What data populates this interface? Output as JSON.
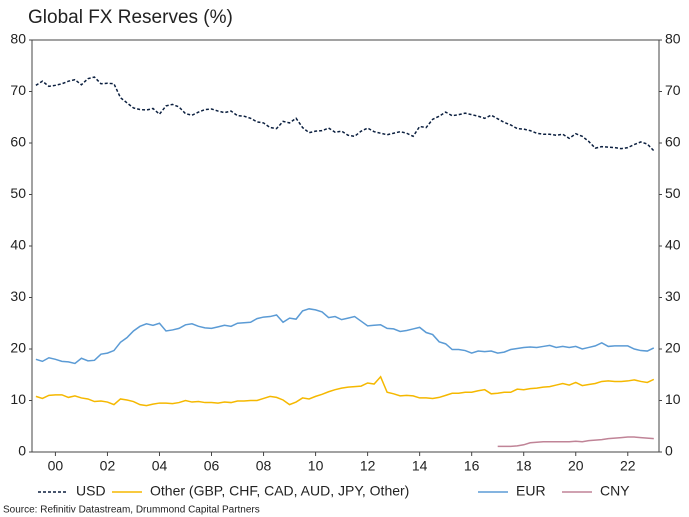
{
  "chart_data": {
    "type": "line",
    "title": "Global FX Reserves (%)",
    "source": "Source: Refinitiv Datastream, Drummond Capital Partners",
    "x": [
      1999.25,
      1999.5,
      1999.75,
      2000,
      2000.25,
      2000.5,
      2000.75,
      2001,
      2001.25,
      2001.5,
      2001.75,
      2002,
      2002.25,
      2002.5,
      2002.75,
      2003,
      2003.25,
      2003.5,
      2003.75,
      2004,
      2004.25,
      2004.5,
      2004.75,
      2005,
      2005.25,
      2005.5,
      2005.75,
      2006,
      2006.25,
      2006.5,
      2006.75,
      2007,
      2007.25,
      2007.5,
      2007.75,
      2008,
      2008.25,
      2008.5,
      2008.75,
      2009,
      2009.25,
      2009.5,
      2009.75,
      2010,
      2010.25,
      2010.5,
      2010.75,
      2011,
      2011.25,
      2011.5,
      2011.75,
      2012,
      2012.25,
      2012.5,
      2012.75,
      2013,
      2013.25,
      2013.5,
      2013.75,
      2014,
      2014.25,
      2014.5,
      2014.75,
      2015,
      2015.25,
      2015.5,
      2015.75,
      2016,
      2016.25,
      2016.5,
      2016.75,
      2017,
      2017.25,
      2017.5,
      2017.75,
      2018,
      2018.25,
      2018.5,
      2018.75,
      2019,
      2019.25,
      2019.5,
      2019.75,
      2020,
      2020.25,
      2020.5,
      2020.75,
      2021,
      2021.25,
      2021.5,
      2021.75,
      2022,
      2022.25,
      2022.5,
      2022.75,
      2023
    ],
    "series": [
      {
        "name": "USD",
        "color": "#0b1f3f",
        "dashed": true,
        "values": [
          71.2,
          72,
          71,
          71.2,
          71.5,
          72,
          72.3,
          71.3,
          72.5,
          72.8,
          71.5,
          71.6,
          71.5,
          68.8,
          67.8,
          66.8,
          66.5,
          66.4,
          66.7,
          65.6,
          67.2,
          67.5,
          67,
          65.7,
          65.4,
          66,
          66.5,
          66.6,
          66.2,
          65.9,
          66.2,
          65.3,
          65.2,
          64.8,
          64.1,
          63.9,
          63,
          62.8,
          64.2,
          63.9,
          64.8,
          63,
          62,
          62.3,
          62.4,
          62.9,
          62.1,
          62.3,
          61.5,
          61.3,
          62.3,
          62.9,
          62.2,
          61.9,
          61.6,
          61.9,
          62.2,
          61.9,
          61.3,
          63.2,
          63,
          64.6,
          65.2,
          66,
          65.3,
          65.5,
          65.8,
          65.5,
          65.2,
          64.8,
          65.4,
          64.7,
          64,
          63.5,
          62.8,
          62.7,
          62.4,
          61.9,
          61.7,
          61.7,
          61.5,
          61.7,
          60.9,
          61.8,
          61.3,
          60.3,
          59,
          59.3,
          59.2,
          59.1,
          58.9,
          59.1,
          59.7,
          60.2,
          59.8,
          58.5
        ]
      },
      {
        "name": "Other (GBP, CHF, CAD, AUD, JPY, Other)",
        "color": "#f5b800",
        "dashed": false,
        "values": [
          10.8,
          10.4,
          11,
          11.1,
          11.1,
          10.6,
          10.9,
          10.5,
          10.3,
          9.8,
          9.9,
          9.7,
          9.2,
          10.3,
          10.1,
          9.8,
          9.2,
          9,
          9.3,
          9.5,
          9.5,
          9.4,
          9.6,
          10,
          9.7,
          9.8,
          9.6,
          9.6,
          9.5,
          9.7,
          9.6,
          9.9,
          9.9,
          10,
          10,
          10.4,
          10.8,
          10.6,
          10.1,
          9.2,
          9.7,
          10.5,
          10.3,
          10.8,
          11.2,
          11.7,
          12.1,
          12.4,
          12.6,
          12.7,
          12.8,
          13.4,
          13.2,
          14.6,
          11.6,
          11.3,
          10.9,
          11,
          10.9,
          10.5,
          10.5,
          10.4,
          10.6,
          11,
          11.4,
          11.4,
          11.6,
          11.6,
          11.9,
          12.1,
          11.3,
          11.4,
          11.6,
          11.6,
          12.2,
          12.1,
          12.3,
          12.4,
          12.6,
          12.7,
          13,
          13.3,
          13,
          13.5,
          12.9,
          13.1,
          13.3,
          13.7,
          13.8,
          13.7,
          13.7,
          13.8,
          14,
          13.7,
          13.5,
          14.1
        ]
      },
      {
        "name": "EUR",
        "color": "#5b9bd5",
        "dashed": false,
        "values": [
          18,
          17.6,
          18.3,
          18,
          17.6,
          17.5,
          17.2,
          18.2,
          17.7,
          17.8,
          19,
          19.2,
          19.7,
          21.3,
          22.2,
          23.5,
          24.4,
          24.9,
          24.6,
          25,
          23.5,
          23.7,
          24,
          24.7,
          24.9,
          24.4,
          24.1,
          24,
          24.3,
          24.6,
          24.4,
          25,
          25.1,
          25.2,
          25.9,
          26.2,
          26.3,
          26.6,
          25.2,
          26,
          25.8,
          27.4,
          27.8,
          27.6,
          27.2,
          26.1,
          26.3,
          25.7,
          26,
          26.3,
          25.4,
          24.5,
          24.6,
          24.7,
          24,
          23.9,
          23.4,
          23.6,
          23.9,
          24.2,
          23.2,
          22.8,
          21.4,
          21,
          19.9,
          19.9,
          19.7,
          19.2,
          19.6,
          19.5,
          19.6,
          19.2,
          19.4,
          19.9,
          20.1,
          20.3,
          20.4,
          20.3,
          20.5,
          20.7,
          20.3,
          20.5,
          20.3,
          20.5,
          20,
          20.3,
          20.6,
          21.2,
          20.5,
          20.6,
          20.6,
          20.6,
          20,
          19.7,
          19.6,
          20.2
        ]
      },
      {
        "name": "CNY",
        "color": "#c08497",
        "dashed": false,
        "values": [
          null,
          null,
          null,
          null,
          null,
          null,
          null,
          null,
          null,
          null,
          null,
          null,
          null,
          null,
          null,
          null,
          null,
          null,
          null,
          null,
          null,
          null,
          null,
          null,
          null,
          null,
          null,
          null,
          null,
          null,
          null,
          null,
          null,
          null,
          null,
          null,
          null,
          null,
          null,
          null,
          null,
          null,
          null,
          null,
          null,
          null,
          null,
          null,
          null,
          null,
          null,
          null,
          null,
          null,
          null,
          null,
          null,
          null,
          null,
          null,
          null,
          null,
          null,
          null,
          null,
          null,
          null,
          null,
          null,
          null,
          null,
          1.1,
          1.1,
          1.1,
          1.2,
          1.4,
          1.8,
          1.9,
          2,
          2,
          2,
          2,
          2,
          2.1,
          2,
          2.2,
          2.3,
          2.4,
          2.6,
          2.7,
          2.8,
          2.9,
          2.9,
          2.8,
          2.7,
          2.6
        ]
      }
    ],
    "xlim": [
      1999.1,
      2023.2
    ],
    "xticks": [
      {
        "value": 2000,
        "label": "00"
      },
      {
        "value": 2002,
        "label": "02"
      },
      {
        "value": 2004,
        "label": "04"
      },
      {
        "value": 2006,
        "label": "06"
      },
      {
        "value": 2008,
        "label": "08"
      },
      {
        "value": 2010,
        "label": "10"
      },
      {
        "value": 2012,
        "label": "12"
      },
      {
        "value": 2014,
        "label": "14"
      },
      {
        "value": 2016,
        "label": "16"
      },
      {
        "value": 2018,
        "label": "18"
      },
      {
        "value": 2020,
        "label": "20"
      },
      {
        "value": 2022,
        "label": "22"
      }
    ],
    "ylim": [
      0,
      80
    ],
    "yticks": [
      0,
      10,
      20,
      30,
      40,
      50,
      60,
      70,
      80
    ],
    "y2lim": [
      0,
      80
    ],
    "y2ticks": [
      0,
      10,
      20,
      30,
      40,
      50,
      60,
      70,
      80
    ],
    "grid": false,
    "legend": "bottom"
  }
}
